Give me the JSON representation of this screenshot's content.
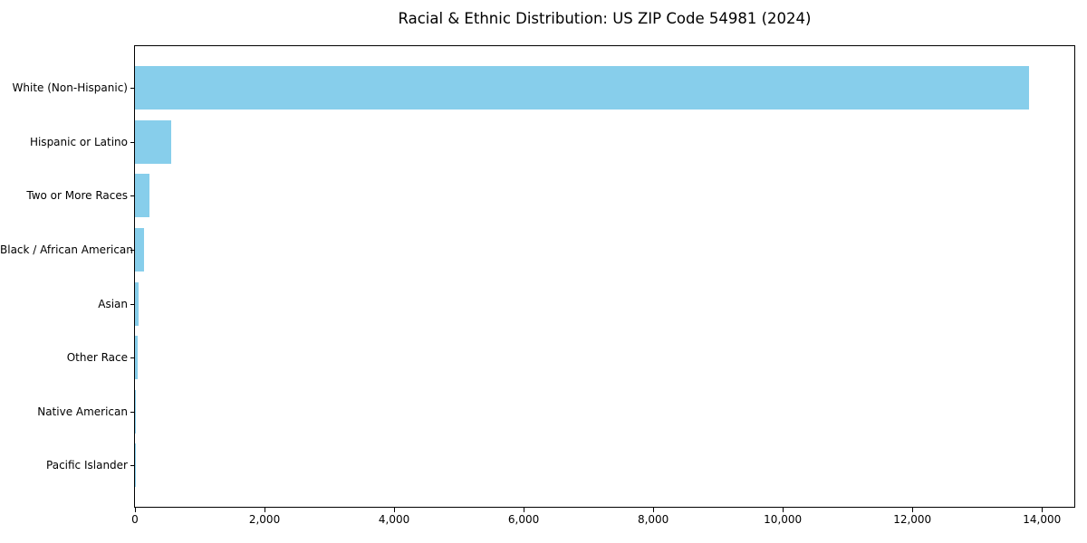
{
  "chart_data": {
    "type": "bar",
    "orientation": "horizontal",
    "title": "Racial & Ethnic Distribution: US ZIP Code 54981 (2024)",
    "categories": [
      "White (Non-Hispanic)",
      "Hispanic or Latino",
      "Two or More Races",
      "Black / African American",
      "Asian",
      "Other Race",
      "Native American",
      "Pacific Islander"
    ],
    "values": [
      13800,
      560,
      230,
      140,
      60,
      40,
      12,
      2
    ],
    "xlabel": "",
    "ylabel": "",
    "xlim": [
      0,
      14500
    ],
    "x_ticks": [
      0,
      2000,
      4000,
      6000,
      8000,
      10000,
      12000,
      14000
    ],
    "x_tick_labels": [
      "0",
      "2,000",
      "4,000",
      "6,000",
      "8,000",
      "10,000",
      "12,000",
      "14,000"
    ],
    "bar_color": "#87CEEB",
    "frame_color": "#000000",
    "text_color": "#000000",
    "background_color": "#FFFFFF",
    "grid": false,
    "legend": false
  }
}
